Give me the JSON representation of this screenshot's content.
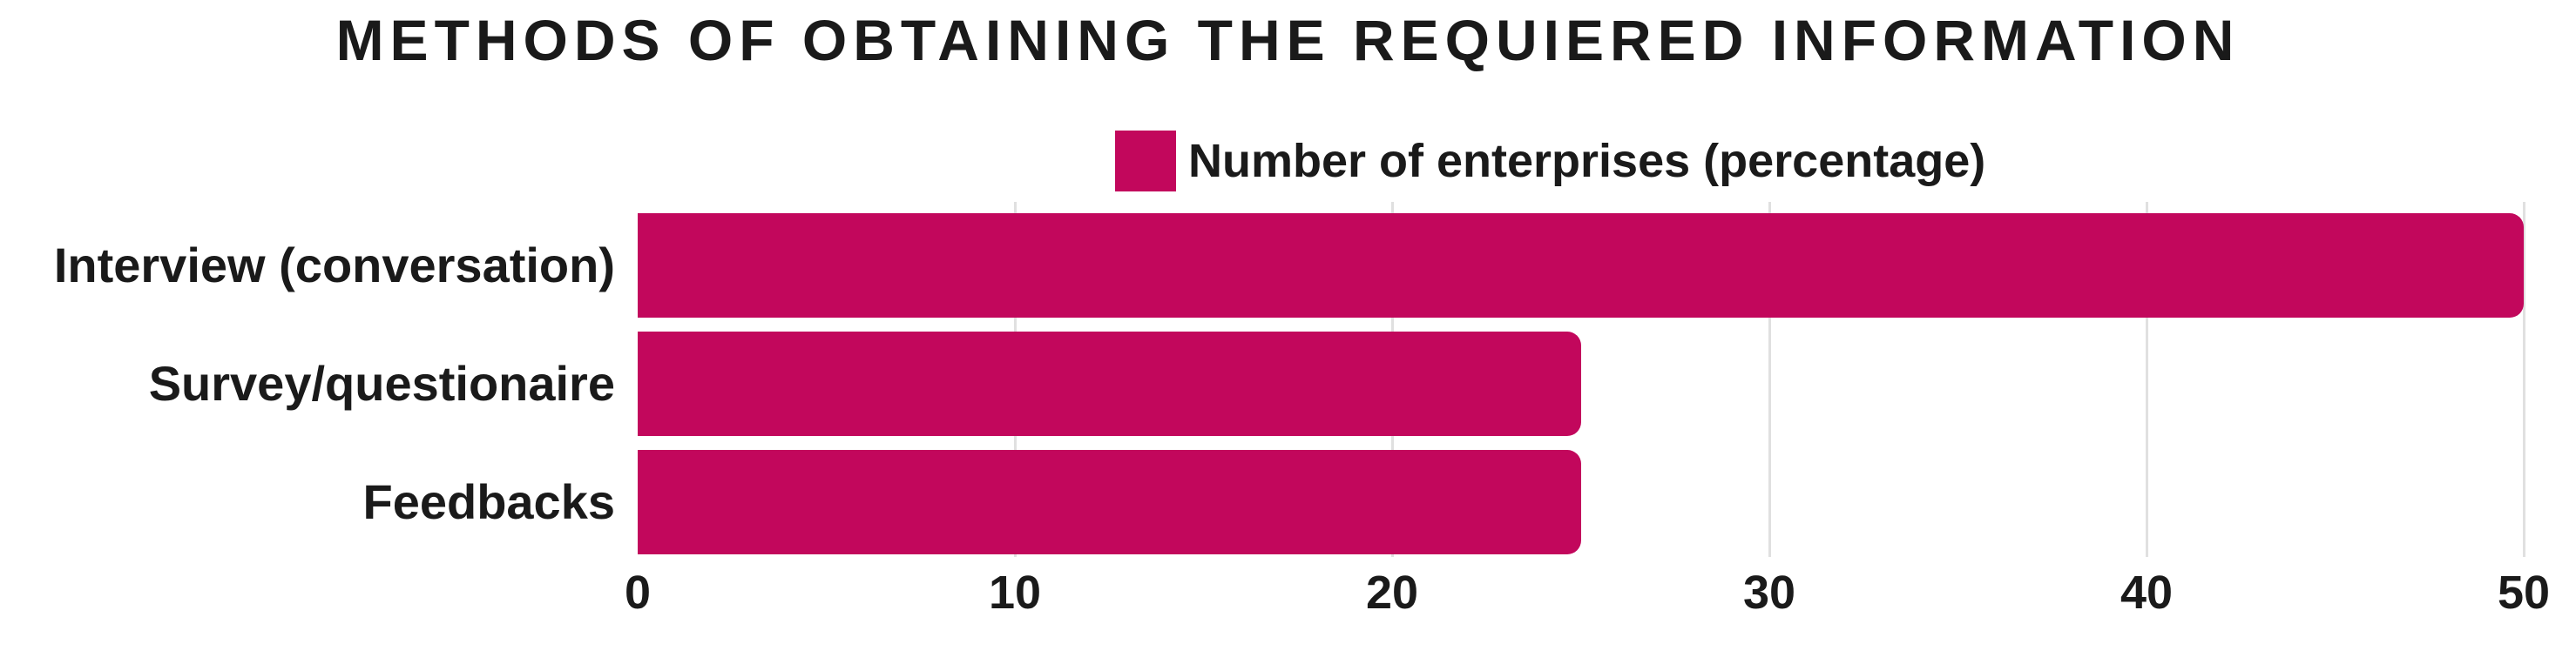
{
  "chart_data": {
    "type": "bar",
    "orientation": "horizontal",
    "title": "METHODS OF OBTAINING THE REQUIERED INFORMATION",
    "legend": "Number of enterprises (percentage)",
    "legend_position": "top-center-over-plot",
    "categories": [
      "Interview (conversation)",
      "Survey/questionaire",
      "Feedbacks"
    ],
    "series": [
      {
        "name": "Number of enterprises (percentage)",
        "values": [
          50,
          25,
          25
        ]
      }
    ],
    "xlabel": "",
    "ylabel": "",
    "xlim": [
      0,
      50
    ],
    "xticks": [
      0,
      10,
      20,
      30,
      40,
      50
    ],
    "grid": "vertical-only",
    "colors": {
      "bar": "#c2075c",
      "gridline": "#e0e0e0",
      "text": "#1a1a1a",
      "background": "#ffffff"
    }
  }
}
